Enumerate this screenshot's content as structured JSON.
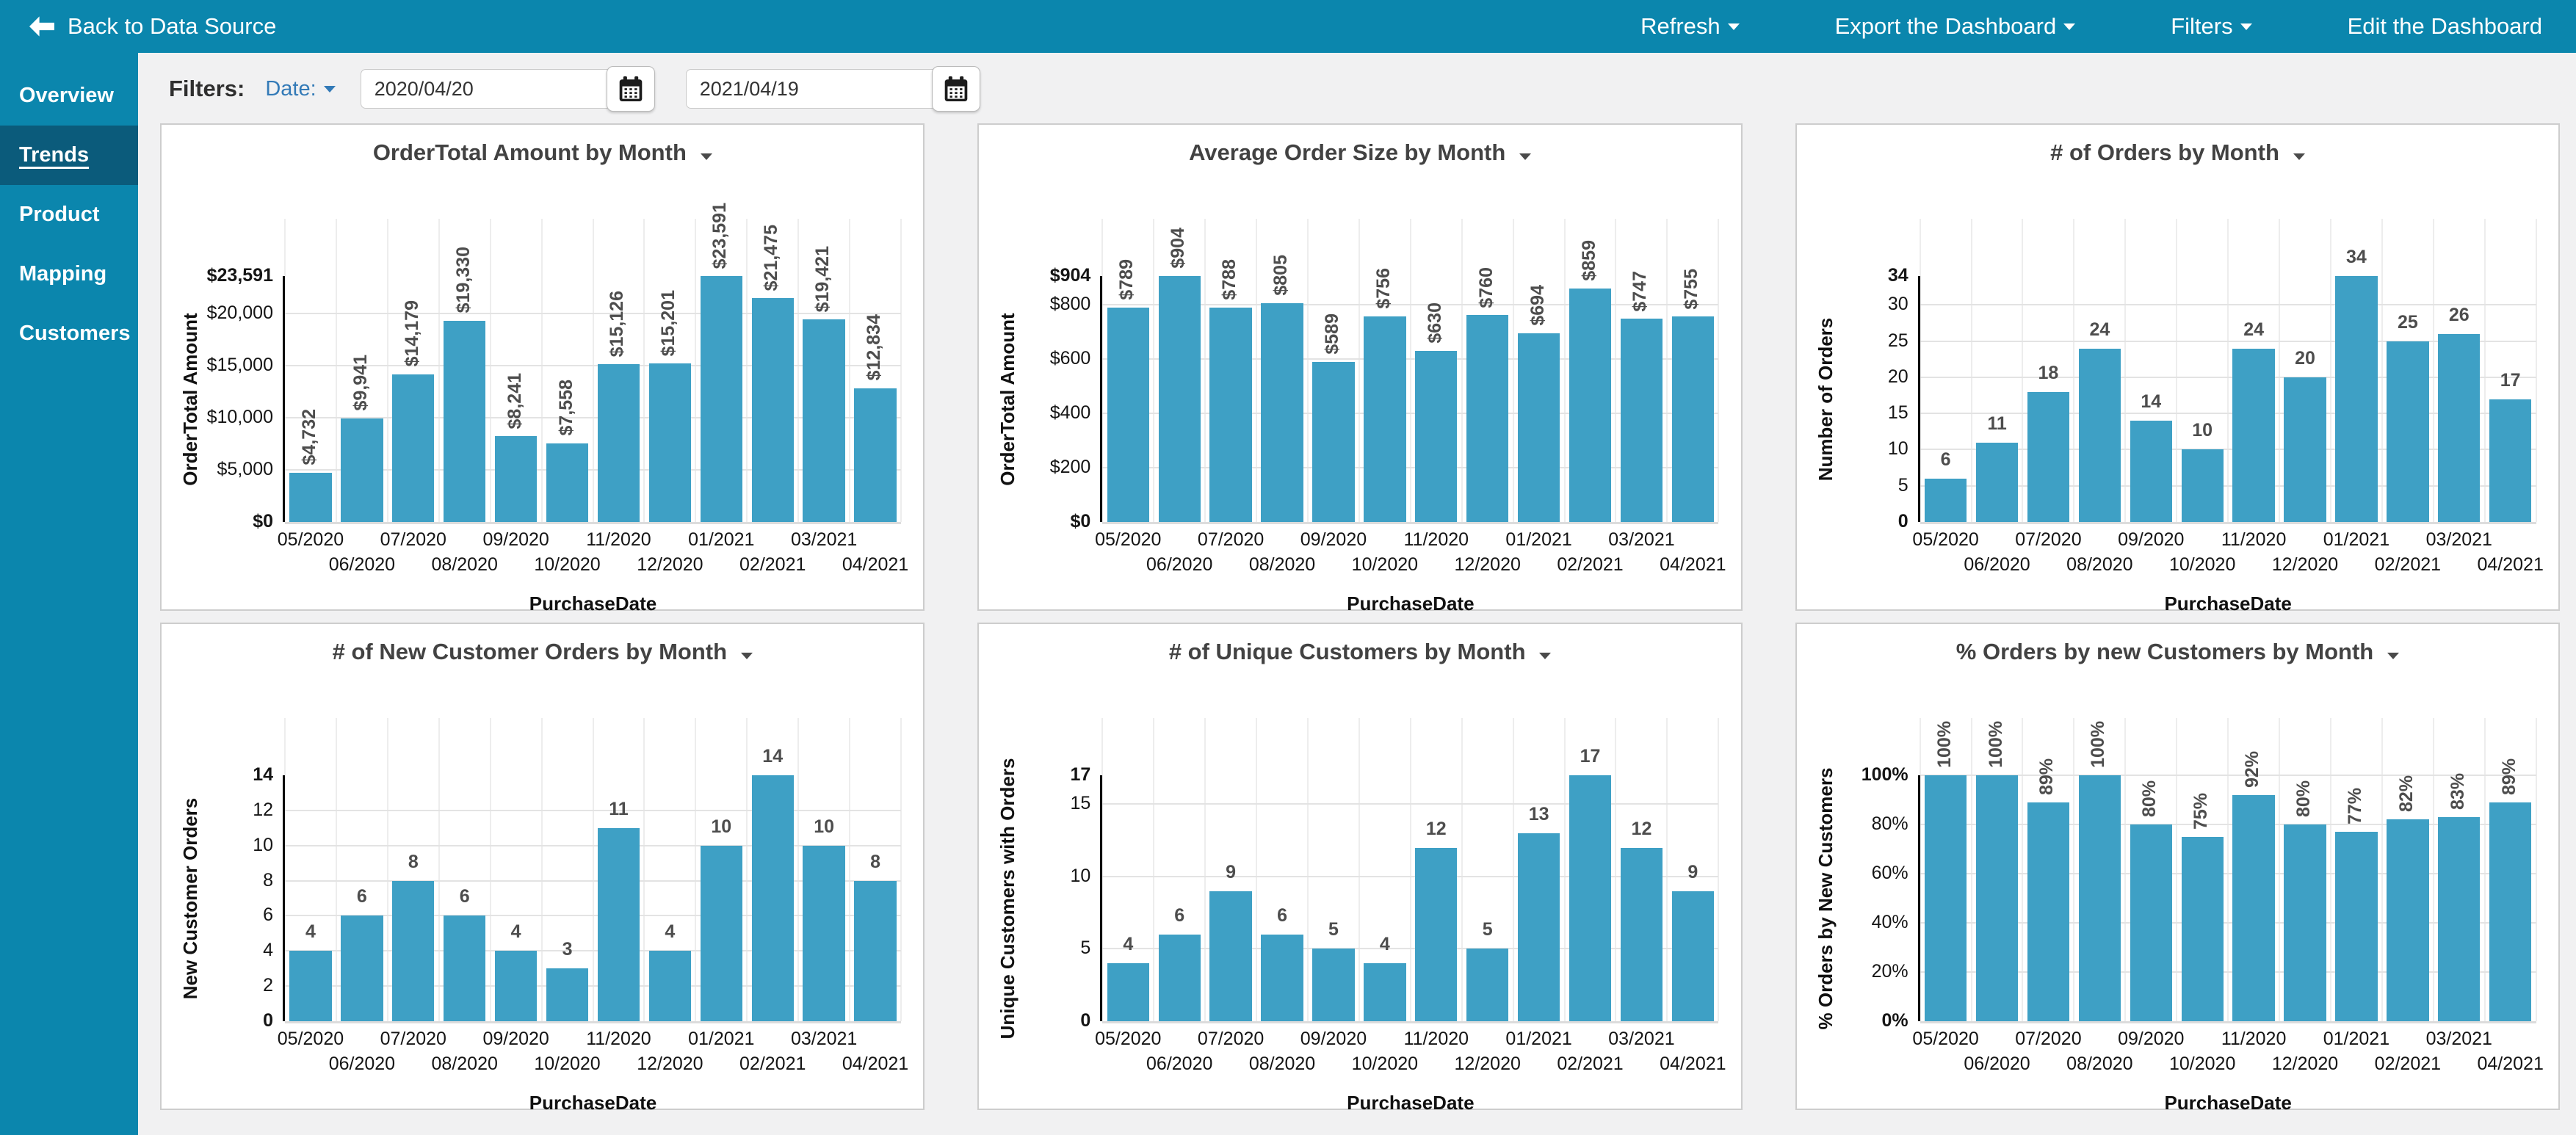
{
  "topbar": {
    "back_label": "Back to Data Source",
    "menu": [
      {
        "label": "Refresh",
        "caret": true
      },
      {
        "label": "Export the Dashboard",
        "caret": true
      },
      {
        "label": "Filters",
        "caret": true
      },
      {
        "label": "Edit the Dashboard",
        "caret": false
      }
    ]
  },
  "sidebar": {
    "items": [
      {
        "label": "Overview",
        "active": false
      },
      {
        "label": "Trends",
        "active": true
      },
      {
        "label": "Product",
        "active": false
      },
      {
        "label": "Mapping",
        "active": false
      },
      {
        "label": "Customers",
        "active": false
      }
    ]
  },
  "filters": {
    "label": "Filters:",
    "date_label": "Date:",
    "start_value": "2020/04/20",
    "end_value": "2021/04/19"
  },
  "colors": {
    "accent": "#0b86ad",
    "accent_active": "#0b5b7b",
    "bar": "#3ea0c5",
    "link": "#337ab7"
  },
  "chart_data": [
    {
      "type": "bar",
      "title": "OrderTotal Amount by Month",
      "xlabel": "PurchaseDate",
      "ylabel": "OrderTotal Amount",
      "categories": [
        "05/2020",
        "06/2020",
        "07/2020",
        "08/2020",
        "09/2020",
        "10/2020",
        "11/2020",
        "12/2020",
        "01/2021",
        "02/2021",
        "03/2021",
        "04/2021"
      ],
      "values": [
        4732,
        9941,
        14179,
        19330,
        8241,
        7558,
        15126,
        15201,
        23591,
        21475,
        19421,
        12834
      ],
      "value_labels": [
        "$4,732",
        "$9,941",
        "$14,179",
        "$19,330",
        "$8,241",
        "$7,558",
        "$15,126",
        "$15,201",
        "$23,591",
        "$21,475",
        "$19,421",
        "$12,834"
      ],
      "rotated_value_labels": true,
      "ylim": [
        0,
        23591
      ],
      "yticks": [
        {
          "v": 0,
          "label": "$0",
          "bold": true
        },
        {
          "v": 5000,
          "label": "$5,000"
        },
        {
          "v": 10000,
          "label": "$10,000"
        },
        {
          "v": 15000,
          "label": "$15,000"
        },
        {
          "v": 20000,
          "label": "$20,000"
        },
        {
          "v": 23591,
          "label": "$23,591",
          "bold": true,
          "grid": false
        }
      ]
    },
    {
      "type": "bar",
      "title": "Average Order Size by Month",
      "xlabel": "PurchaseDate",
      "ylabel": "OrderTotal Amount",
      "categories": [
        "05/2020",
        "06/2020",
        "07/2020",
        "08/2020",
        "09/2020",
        "10/2020",
        "11/2020",
        "12/2020",
        "01/2021",
        "02/2021",
        "03/2021",
        "04/2021"
      ],
      "values": [
        789,
        904,
        788,
        805,
        589,
        756,
        630,
        760,
        694,
        859,
        747,
        755
      ],
      "value_labels": [
        "$789",
        "$904",
        "$788",
        "$805",
        "$589",
        "$756",
        "$630",
        "$760",
        "$694",
        "$859",
        "$747",
        "$755"
      ],
      "rotated_value_labels": true,
      "ylim": [
        0,
        904
      ],
      "yticks": [
        {
          "v": 0,
          "label": "$0",
          "bold": true
        },
        {
          "v": 200,
          "label": "$200"
        },
        {
          "v": 400,
          "label": "$400"
        },
        {
          "v": 600,
          "label": "$600"
        },
        {
          "v": 800,
          "label": "$800"
        },
        {
          "v": 904,
          "label": "$904",
          "bold": true,
          "grid": false
        }
      ]
    },
    {
      "type": "bar",
      "title": "# of Orders by Month",
      "xlabel": "PurchaseDate",
      "ylabel": "Number of Orders",
      "categories": [
        "05/2020",
        "06/2020",
        "07/2020",
        "08/2020",
        "09/2020",
        "10/2020",
        "11/2020",
        "12/2020",
        "01/2021",
        "02/2021",
        "03/2021",
        "04/2021"
      ],
      "values": [
        6,
        11,
        18,
        24,
        14,
        10,
        24,
        20,
        34,
        25,
        26,
        17
      ],
      "value_labels": [
        "6",
        "11",
        "18",
        "24",
        "14",
        "10",
        "24",
        "20",
        "34",
        "25",
        "26",
        "17"
      ],
      "rotated_value_labels": false,
      "ylim": [
        0,
        34
      ],
      "yticks": [
        {
          "v": 0,
          "label": "0",
          "bold": true
        },
        {
          "v": 5,
          "label": "5"
        },
        {
          "v": 10,
          "label": "10"
        },
        {
          "v": 15,
          "label": "15"
        },
        {
          "v": 20,
          "label": "20"
        },
        {
          "v": 25,
          "label": "25"
        },
        {
          "v": 30,
          "label": "30"
        },
        {
          "v": 34,
          "label": "34",
          "bold": true,
          "grid": false
        }
      ]
    },
    {
      "type": "bar",
      "title": "# of New Customer Orders by Month",
      "xlabel": "PurchaseDate",
      "ylabel": "New Customer Orders",
      "categories": [
        "05/2020",
        "06/2020",
        "07/2020",
        "08/2020",
        "09/2020",
        "10/2020",
        "11/2020",
        "12/2020",
        "01/2021",
        "02/2021",
        "03/2021",
        "04/2021"
      ],
      "values": [
        4,
        6,
        8,
        6,
        4,
        3,
        11,
        4,
        10,
        14,
        10,
        8
      ],
      "value_labels": [
        "4",
        "6",
        "8",
        "6",
        "4",
        "3",
        "11",
        "4",
        "10",
        "14",
        "10",
        "8"
      ],
      "rotated_value_labels": false,
      "ylim": [
        0,
        14
      ],
      "yticks": [
        {
          "v": 0,
          "label": "0",
          "bold": true
        },
        {
          "v": 2,
          "label": "2"
        },
        {
          "v": 4,
          "label": "4"
        },
        {
          "v": 6,
          "label": "6"
        },
        {
          "v": 8,
          "label": "8"
        },
        {
          "v": 10,
          "label": "10"
        },
        {
          "v": 12,
          "label": "12"
        },
        {
          "v": 14,
          "label": "14",
          "bold": true,
          "grid": false
        }
      ]
    },
    {
      "type": "bar",
      "title": "# of Unique Customers by Month",
      "xlabel": "PurchaseDate",
      "ylabel": "Unique Customers with Orders",
      "categories": [
        "05/2020",
        "06/2020",
        "07/2020",
        "08/2020",
        "09/2020",
        "10/2020",
        "11/2020",
        "12/2020",
        "01/2021",
        "02/2021",
        "03/2021",
        "04/2021"
      ],
      "values": [
        4,
        6,
        9,
        6,
        5,
        4,
        12,
        5,
        13,
        17,
        12,
        9
      ],
      "value_labels": [
        "4",
        "6",
        "9",
        "6",
        "5",
        "4",
        "12",
        "5",
        "13",
        "17",
        "12",
        "9"
      ],
      "rotated_value_labels": false,
      "ylim": [
        0,
        17
      ],
      "yticks": [
        {
          "v": 0,
          "label": "0",
          "bold": true
        },
        {
          "v": 5,
          "label": "5"
        },
        {
          "v": 10,
          "label": "10"
        },
        {
          "v": 15,
          "label": "15"
        },
        {
          "v": 17,
          "label": "17",
          "bold": true,
          "grid": false
        }
      ]
    },
    {
      "type": "bar",
      "title": "% Orders by new Customers by Month",
      "xlabel": "PurchaseDate",
      "ylabel": "% Orders by New Customers",
      "categories": [
        "05/2020",
        "06/2020",
        "07/2020",
        "08/2020",
        "09/2020",
        "10/2020",
        "11/2020",
        "12/2020",
        "01/2021",
        "02/2021",
        "03/2021",
        "04/2021"
      ],
      "values": [
        100,
        100,
        89,
        100,
        80,
        75,
        92,
        80,
        77,
        82,
        83,
        89
      ],
      "value_labels": [
        "100%",
        "100%",
        "89%",
        "100%",
        "80%",
        "75%",
        "92%",
        "80%",
        "77%",
        "82%",
        "83%",
        "89%"
      ],
      "rotated_value_labels": true,
      "ylim": [
        0,
        100
      ],
      "yticks": [
        {
          "v": 0,
          "label": "0%",
          "bold": true
        },
        {
          "v": 20,
          "label": "20%"
        },
        {
          "v": 40,
          "label": "40%"
        },
        {
          "v": 60,
          "label": "60%"
        },
        {
          "v": 80,
          "label": "80%"
        },
        {
          "v": 100,
          "label": "100%",
          "bold": true
        }
      ]
    }
  ]
}
